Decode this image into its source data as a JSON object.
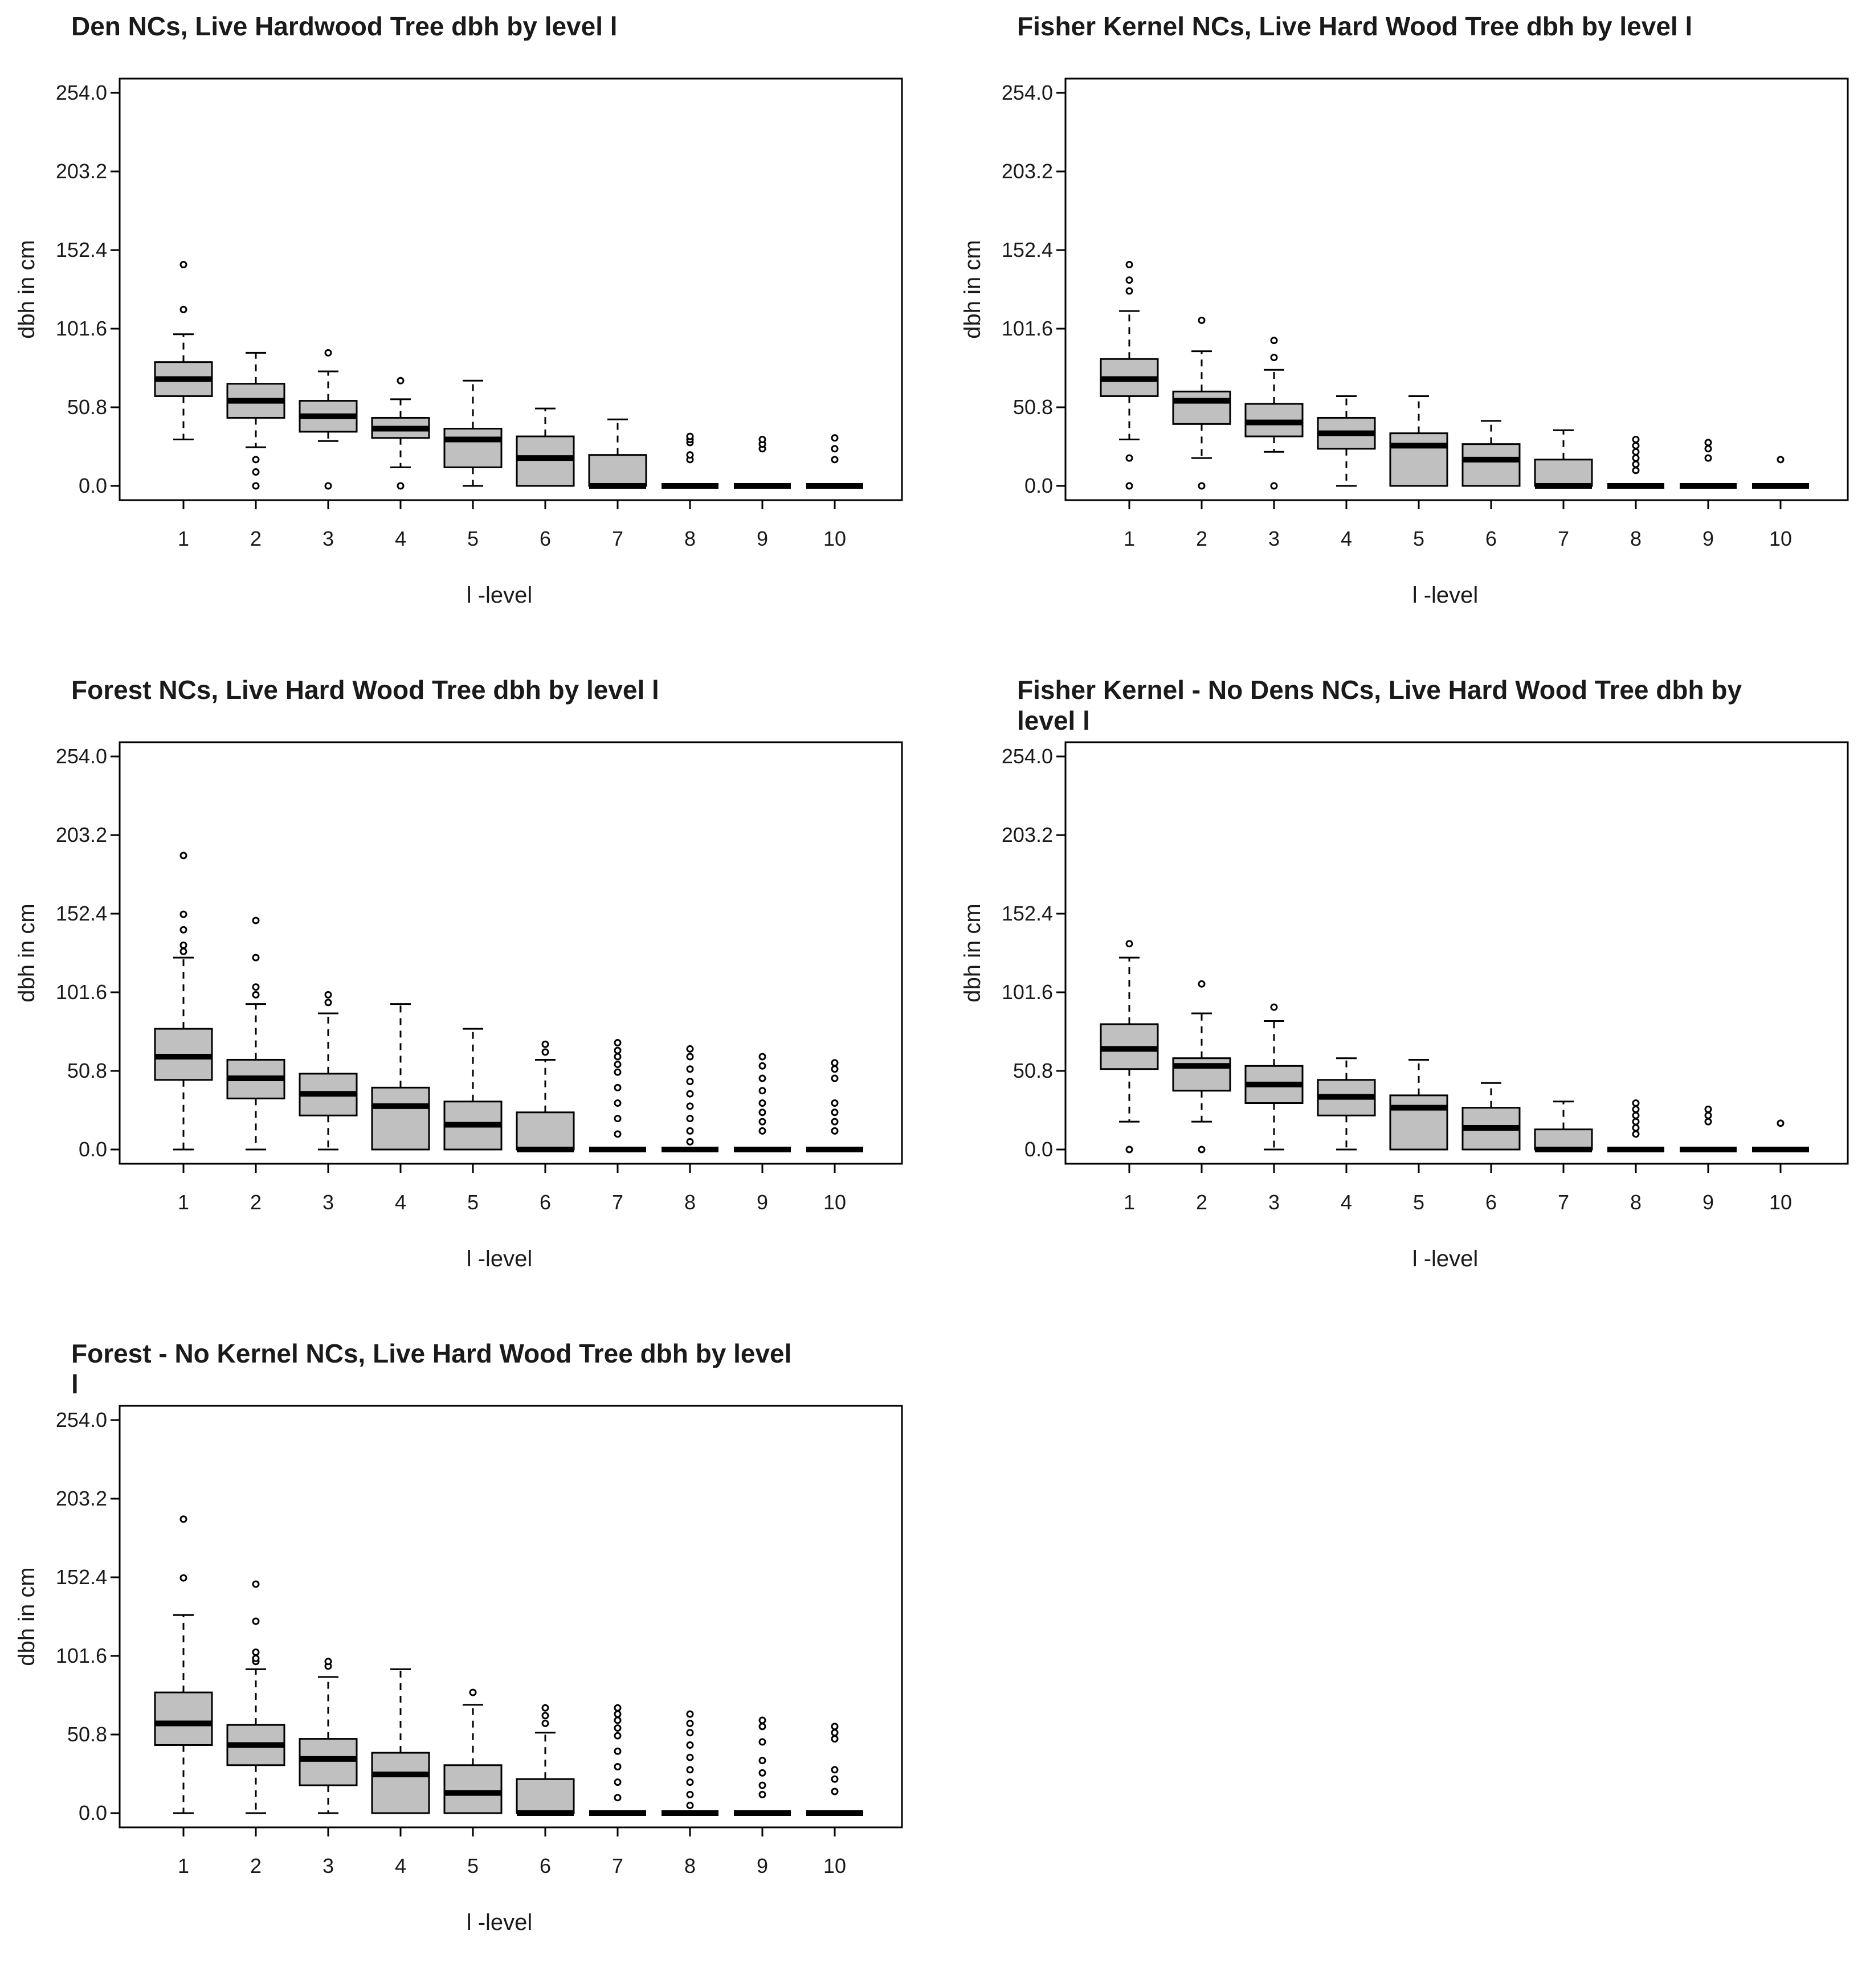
{
  "chart_data": [
    {
      "type": "boxplot",
      "title": "Den NCs, Live Hardwood Tree dbh by level l",
      "xlabel": "l -level",
      "ylabel": "dbh in cm",
      "ylim": [
        -9,
        264
      ],
      "yticks": [
        "254.0",
        "203.2",
        "152.4",
        "101.6",
        "50.8",
        "0.0"
      ],
      "categories": [
        "1",
        "2",
        "3",
        "4",
        "5",
        "6",
        "7",
        "8",
        "9",
        "10"
      ],
      "series": [
        {
          "cat": "1",
          "min": 30,
          "q1": 58,
          "median": 69,
          "q3": 80,
          "max": 98,
          "outliers": [
            143,
            114
          ]
        },
        {
          "cat": "2",
          "min": 25,
          "q1": 44,
          "median": 55,
          "q3": 66,
          "max": 86,
          "outliers": [
            0,
            9,
            17
          ]
        },
        {
          "cat": "3",
          "min": 29,
          "q1": 35,
          "median": 45,
          "q3": 55,
          "max": 74,
          "outliers": [
            0,
            86
          ]
        },
        {
          "cat": "4",
          "min": 12,
          "q1": 31,
          "median": 37,
          "q3": 44,
          "max": 56,
          "outliers": [
            0,
            68
          ]
        },
        {
          "cat": "5",
          "min": 0,
          "q1": 12,
          "median": 30,
          "q3": 37,
          "max": 68,
          "outliers": []
        },
        {
          "cat": "6",
          "min": 0,
          "q1": 0,
          "median": 18,
          "q3": 32,
          "max": 50,
          "outliers": []
        },
        {
          "cat": "7",
          "min": 0,
          "q1": 0,
          "median": 0,
          "q3": 20,
          "max": 43,
          "outliers": []
        },
        {
          "cat": "8",
          "min": 0,
          "q1": 0,
          "median": 0,
          "q3": 0,
          "max": 0,
          "outliers": [
            17,
            20,
            28,
            30,
            32
          ]
        },
        {
          "cat": "9",
          "min": 0,
          "q1": 0,
          "median": 0,
          "q3": 0,
          "max": 0,
          "outliers": [
            24,
            27,
            30
          ]
        },
        {
          "cat": "10",
          "min": 0,
          "q1": 0,
          "median": 0,
          "q3": 0,
          "max": 0,
          "outliers": [
            17,
            24,
            31
          ]
        }
      ]
    },
    {
      "type": "boxplot",
      "title": "Fisher Kernel NCs, Live Hard Wood Tree dbh by level l",
      "xlabel": "l -level",
      "ylabel": "dbh in cm",
      "ylim": [
        -9,
        264
      ],
      "yticks": [
        "254.0",
        "203.2",
        "152.4",
        "101.6",
        "50.8",
        "0.0"
      ],
      "categories": [
        "1",
        "2",
        "3",
        "4",
        "5",
        "6",
        "7",
        "8",
        "9",
        "10"
      ],
      "series": [
        {
          "cat": "1",
          "min": 30,
          "q1": 58,
          "median": 69,
          "q3": 82,
          "max": 113,
          "outliers": [
            0,
            18,
            126,
            133,
            143
          ]
        },
        {
          "cat": "2",
          "min": 18,
          "q1": 40,
          "median": 55,
          "q3": 61,
          "max": 87,
          "outliers": [
            0,
            107
          ]
        },
        {
          "cat": "3",
          "min": 22,
          "q1": 32,
          "median": 41,
          "q3": 53,
          "max": 75,
          "outliers": [
            0,
            83,
            94
          ]
        },
        {
          "cat": "4",
          "min": 0,
          "q1": 24,
          "median": 34,
          "q3": 44,
          "max": 58,
          "outliers": []
        },
        {
          "cat": "5",
          "min": 0,
          "q1": 0,
          "median": 26,
          "q3": 34,
          "max": 58,
          "outliers": []
        },
        {
          "cat": "6",
          "min": 0,
          "q1": 0,
          "median": 17,
          "q3": 27,
          "max": 42,
          "outliers": []
        },
        {
          "cat": "7",
          "min": 0,
          "q1": 0,
          "median": 0,
          "q3": 17,
          "max": 36,
          "outliers": []
        },
        {
          "cat": "8",
          "min": 0,
          "q1": 0,
          "median": 0,
          "q3": 0,
          "max": 0,
          "outliers": [
            10,
            14,
            18,
            22,
            26,
            30
          ]
        },
        {
          "cat": "9",
          "min": 0,
          "q1": 0,
          "median": 0,
          "q3": 0,
          "max": 0,
          "outliers": [
            18,
            24,
            28
          ]
        },
        {
          "cat": "10",
          "min": 0,
          "q1": 0,
          "median": 0,
          "q3": 0,
          "max": 0,
          "outliers": [
            17
          ]
        }
      ]
    },
    {
      "type": "boxplot",
      "title": "Forest NCs, Live Hard Wood Tree dbh by level l",
      "xlabel": "l -level",
      "ylabel": "dbh in cm",
      "ylim": [
        -9,
        264
      ],
      "yticks": [
        "254.0",
        "203.2",
        "152.4",
        "101.6",
        "50.8",
        "0.0"
      ],
      "categories": [
        "1",
        "2",
        "3",
        "4",
        "5",
        "6",
        "7",
        "8",
        "9",
        "10"
      ],
      "series": [
        {
          "cat": "1",
          "min": 0,
          "q1": 45,
          "median": 60,
          "q3": 78,
          "max": 124,
          "outliers": [
            128,
            132,
            142,
            152,
            190
          ]
        },
        {
          "cat": "2",
          "min": 0,
          "q1": 33,
          "median": 46,
          "q3": 58,
          "max": 94,
          "outliers": [
            100,
            105,
            124,
            148
          ]
        },
        {
          "cat": "3",
          "min": 0,
          "q1": 22,
          "median": 36,
          "q3": 49,
          "max": 88,
          "outliers": [
            95,
            100
          ]
        },
        {
          "cat": "4",
          "min": 0,
          "q1": 0,
          "median": 28,
          "q3": 40,
          "max": 94,
          "outliers": []
        },
        {
          "cat": "5",
          "min": 0,
          "q1": 0,
          "median": 16,
          "q3": 31,
          "max": 78,
          "outliers": []
        },
        {
          "cat": "6",
          "min": 0,
          "q1": 0,
          "median": 0,
          "q3": 24,
          "max": 58,
          "outliers": [
            63,
            68
          ]
        },
        {
          "cat": "7",
          "min": 0,
          "q1": 0,
          "median": 0,
          "q3": 0,
          "max": 0,
          "outliers": [
            10,
            20,
            30,
            40,
            50,
            55,
            60,
            64,
            69
          ]
        },
        {
          "cat": "8",
          "min": 0,
          "q1": 0,
          "median": 0,
          "q3": 0,
          "max": 0,
          "outliers": [
            5,
            12,
            20,
            28,
            36,
            44,
            52,
            60,
            65
          ]
        },
        {
          "cat": "9",
          "min": 0,
          "q1": 0,
          "median": 0,
          "q3": 0,
          "max": 0,
          "outliers": [
            12,
            18,
            24,
            30,
            38,
            46,
            54,
            60
          ]
        },
        {
          "cat": "10",
          "min": 0,
          "q1": 0,
          "median": 0,
          "q3": 0,
          "max": 0,
          "outliers": [
            12,
            18,
            24,
            30,
            46,
            52,
            56
          ]
        }
      ]
    },
    {
      "type": "boxplot",
      "title": "Fisher Kernel - No Dens NCs, Live Hard Wood Tree dbh by level l",
      "xlabel": "l -level",
      "ylabel": "dbh in cm",
      "ylim": [
        -9,
        264
      ],
      "yticks": [
        "254.0",
        "203.2",
        "152.4",
        "101.6",
        "50.8",
        "0.0"
      ],
      "categories": [
        "1",
        "2",
        "3",
        "4",
        "5",
        "6",
        "7",
        "8",
        "9",
        "10"
      ],
      "series": [
        {
          "cat": "1",
          "min": 18,
          "q1": 52,
          "median": 65,
          "q3": 81,
          "max": 124,
          "outliers": [
            0,
            133
          ]
        },
        {
          "cat": "2",
          "min": 18,
          "q1": 38,
          "median": 54,
          "q3": 59,
          "max": 88,
          "outliers": [
            0,
            107
          ]
        },
        {
          "cat": "3",
          "min": 0,
          "q1": 30,
          "median": 42,
          "q3": 54,
          "max": 83,
          "outliers": [
            92
          ]
        },
        {
          "cat": "4",
          "min": 0,
          "q1": 22,
          "median": 34,
          "q3": 45,
          "max": 59,
          "outliers": []
        },
        {
          "cat": "5",
          "min": 0,
          "q1": 0,
          "median": 27,
          "q3": 35,
          "max": 58,
          "outliers": []
        },
        {
          "cat": "6",
          "min": 0,
          "q1": 0,
          "median": 14,
          "q3": 27,
          "max": 43,
          "outliers": []
        },
        {
          "cat": "7",
          "min": 0,
          "q1": 0,
          "median": 0,
          "q3": 13,
          "max": 31,
          "outliers": []
        },
        {
          "cat": "8",
          "min": 0,
          "q1": 0,
          "median": 0,
          "q3": 0,
          "max": 0,
          "outliers": [
            10,
            14,
            18,
            22,
            26,
            30
          ]
        },
        {
          "cat": "9",
          "min": 0,
          "q1": 0,
          "median": 0,
          "q3": 0,
          "max": 0,
          "outliers": [
            18,
            22,
            26
          ]
        },
        {
          "cat": "10",
          "min": 0,
          "q1": 0,
          "median": 0,
          "q3": 0,
          "max": 0,
          "outliers": [
            17
          ]
        }
      ]
    },
    {
      "type": "boxplot",
      "title": "Forest - No Kernel NCs, Live Hard Wood Tree dbh by level l",
      "xlabel": "l -level",
      "ylabel": "dbh in cm",
      "ylim": [
        -9,
        264
      ],
      "yticks": [
        "254.0",
        "203.2",
        "152.4",
        "101.6",
        "50.8",
        "0.0"
      ],
      "categories": [
        "1",
        "2",
        "3",
        "4",
        "5",
        "6",
        "7",
        "8",
        "9",
        "10"
      ],
      "series": [
        {
          "cat": "1",
          "min": 0,
          "q1": 44,
          "median": 58,
          "q3": 78,
          "max": 128,
          "outliers": [
            152,
            190
          ]
        },
        {
          "cat": "2",
          "min": 0,
          "q1": 31,
          "median": 44,
          "q3": 57,
          "max": 93,
          "outliers": [
            98,
            100,
            104,
            124,
            148
          ]
        },
        {
          "cat": "3",
          "min": 0,
          "q1": 18,
          "median": 35,
          "q3": 48,
          "max": 88,
          "outliers": [
            95,
            98
          ]
        },
        {
          "cat": "4",
          "min": 0,
          "q1": 0,
          "median": 25,
          "q3": 39,
          "max": 93,
          "outliers": []
        },
        {
          "cat": "5",
          "min": 0,
          "q1": 0,
          "median": 13,
          "q3": 31,
          "max": 70,
          "outliers": [
            78
          ]
        },
        {
          "cat": "6",
          "min": 0,
          "q1": 0,
          "median": 0,
          "q3": 22,
          "max": 52,
          "outliers": [
            58,
            63,
            68
          ]
        },
        {
          "cat": "7",
          "min": 0,
          "q1": 0,
          "median": 0,
          "q3": 0,
          "max": 0,
          "outliers": [
            10,
            20,
            30,
            40,
            50,
            55,
            60,
            64,
            68
          ]
        },
        {
          "cat": "8",
          "min": 0,
          "q1": 0,
          "median": 0,
          "q3": 0,
          "max": 0,
          "outliers": [
            5,
            12,
            20,
            28,
            36,
            44,
            52,
            58,
            64
          ]
        },
        {
          "cat": "9",
          "min": 0,
          "q1": 0,
          "median": 0,
          "q3": 0,
          "max": 0,
          "outliers": [
            12,
            18,
            26,
            34,
            46,
            56,
            60
          ]
        },
        {
          "cat": "10",
          "min": 0,
          "q1": 0,
          "median": 0,
          "q3": 0,
          "max": 0,
          "outliers": [
            14,
            22,
            28,
            48,
            52,
            56
          ]
        }
      ]
    }
  ]
}
